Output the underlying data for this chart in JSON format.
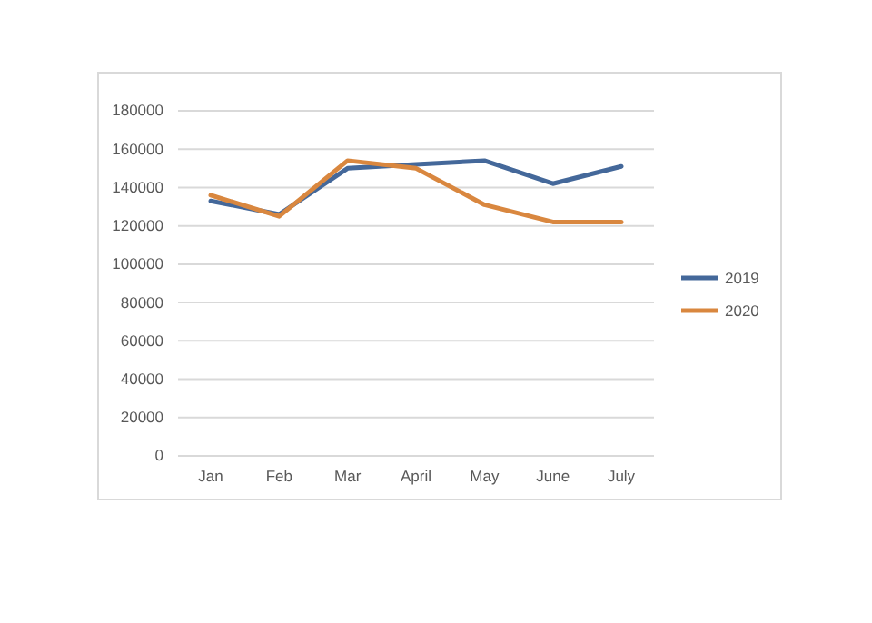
{
  "chart_data": {
    "type": "line",
    "categories": [
      "Jan",
      "Feb",
      "Mar",
      "April",
      "May",
      "June",
      "July"
    ],
    "series": [
      {
        "name": "2019",
        "color": "#44689a",
        "values": [
          133000,
          126000,
          150000,
          152000,
          154000,
          142000,
          151000
        ]
      },
      {
        "name": "2020",
        "color": "#d9873f",
        "values": [
          136000,
          125000,
          154000,
          150000,
          131000,
          122000,
          122000
        ]
      }
    ],
    "ylim": [
      0,
      180000
    ],
    "yticks": [
      0,
      20000,
      40000,
      60000,
      80000,
      100000,
      120000,
      140000,
      160000,
      180000
    ],
    "grid": "y",
    "legend": "right",
    "marker": "none",
    "line_style": "solid"
  }
}
